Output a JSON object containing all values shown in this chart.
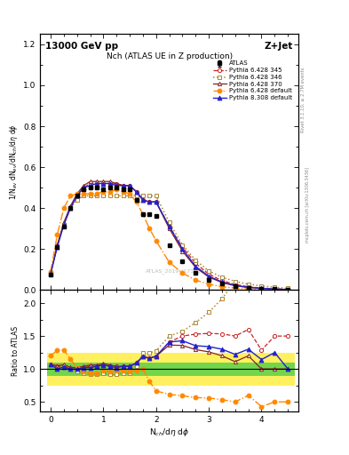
{
  "title_main": "13000 GeV pp",
  "title_right": "Z+Jet",
  "plot_title": "Nch (ATLAS UE in Z production)",
  "ylabel_main": "1/N$_{ev}$ dN$_{ev}$/dN$_{ch}$/d$\\eta$ d$\\phi$",
  "ylabel_ratio": "Ratio to ATLAS",
  "xlabel": "N$_{ch}$/d$\\eta$ d$\\phi$",
  "right_label_top": "Rivet 3.1.10, ≥ 2.7M events",
  "right_label_bot": "mcplots.cern.ch [arXiv:1306.3436]",
  "watermark": "ATLAS_2019_I1736531",
  "x_pts": [
    0.0,
    0.125,
    0.25,
    0.375,
    0.5,
    0.625,
    0.75,
    0.875,
    1.0,
    1.125,
    1.25,
    1.375,
    1.5,
    1.625,
    1.75,
    1.875,
    2.0,
    2.25,
    2.5,
    2.75,
    3.0,
    3.25,
    3.5,
    3.75,
    4.0,
    4.25,
    4.5
  ],
  "y_atlas": [
    0.075,
    0.21,
    0.31,
    0.4,
    0.46,
    0.49,
    0.5,
    0.5,
    0.49,
    0.5,
    0.5,
    0.49,
    0.49,
    0.44,
    0.37,
    0.37,
    0.36,
    0.22,
    0.14,
    0.085,
    0.05,
    0.03,
    0.018,
    0.01,
    0.007,
    0.004,
    0.002
  ],
  "yerr_atlas": [
    0.003,
    0.003,
    0.003,
    0.003,
    0.003,
    0.003,
    0.003,
    0.003,
    0.003,
    0.003,
    0.003,
    0.003,
    0.003,
    0.003,
    0.003,
    0.003,
    0.003,
    0.003,
    0.002,
    0.002,
    0.002,
    0.001,
    0.001,
    0.001,
    0.001,
    0.001,
    0.001
  ],
  "y_p345": [
    0.08,
    0.22,
    0.32,
    0.4,
    0.46,
    0.5,
    0.52,
    0.52,
    0.52,
    0.52,
    0.52,
    0.51,
    0.51,
    0.48,
    0.44,
    0.43,
    0.43,
    0.31,
    0.21,
    0.13,
    0.077,
    0.046,
    0.027,
    0.016,
    0.009,
    0.006,
    0.003
  ],
  "y_p346": [
    0.08,
    0.21,
    0.32,
    0.4,
    0.44,
    0.46,
    0.46,
    0.46,
    0.46,
    0.46,
    0.46,
    0.46,
    0.46,
    0.46,
    0.46,
    0.46,
    0.46,
    0.33,
    0.22,
    0.145,
    0.093,
    0.062,
    0.042,
    0.028,
    0.02,
    0.013,
    0.008
  ],
  "y_p370": [
    0.08,
    0.22,
    0.33,
    0.41,
    0.47,
    0.51,
    0.53,
    0.53,
    0.53,
    0.53,
    0.52,
    0.51,
    0.51,
    0.48,
    0.44,
    0.43,
    0.43,
    0.3,
    0.19,
    0.11,
    0.063,
    0.036,
    0.02,
    0.012,
    0.007,
    0.004,
    0.002
  ],
  "y_pdef428": [
    0.09,
    0.27,
    0.4,
    0.46,
    0.47,
    0.47,
    0.47,
    0.47,
    0.48,
    0.48,
    0.49,
    0.48,
    0.47,
    0.43,
    0.37,
    0.3,
    0.24,
    0.135,
    0.083,
    0.048,
    0.028,
    0.016,
    0.009,
    0.006,
    0.003,
    0.002,
    0.001
  ],
  "y_pdef808": [
    0.08,
    0.21,
    0.32,
    0.4,
    0.46,
    0.5,
    0.51,
    0.52,
    0.52,
    0.52,
    0.51,
    0.51,
    0.51,
    0.48,
    0.44,
    0.43,
    0.43,
    0.31,
    0.2,
    0.115,
    0.067,
    0.039,
    0.022,
    0.013,
    0.008,
    0.005,
    0.002
  ],
  "color_p345": "#cc2222",
  "color_p346": "#aa8833",
  "color_p370": "#882222",
  "color_pdef428": "#ff8800",
  "color_pdef808": "#2222cc",
  "xlim": [
    -0.2,
    4.7
  ],
  "ylim_main": [
    0.0,
    1.25
  ],
  "ylim_ratio": [
    0.35,
    2.2
  ],
  "ratio_yticks": [
    0.5,
    1.0,
    1.5,
    2.0
  ],
  "main_yticks": [
    0.0,
    0.2,
    0.4,
    0.6,
    0.8,
    1.0,
    1.2
  ]
}
